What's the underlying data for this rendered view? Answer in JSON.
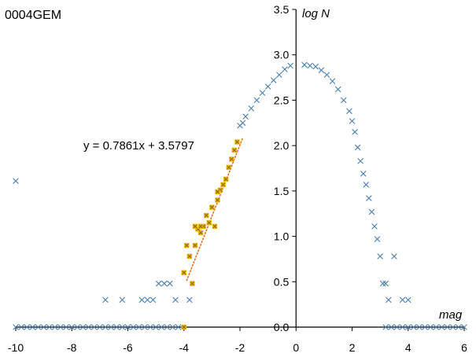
{
  "chart_data": {
    "type": "scatter",
    "title": "0004GEM",
    "xlabel": "mag",
    "ylabel": "log N",
    "xlim": [
      -10,
      6
    ],
    "ylim": [
      0,
      3.5
    ],
    "x_ticks": [
      "-10",
      "-8",
      "-6",
      "-4",
      "-2",
      "0",
      "2",
      "4",
      "6"
    ],
    "y_ticks": [
      "0.0",
      "0.5",
      "1.0",
      "1.5",
      "2.0",
      "2.5",
      "3.0",
      "3.5"
    ],
    "grid": false,
    "legend": "none",
    "trendline": {
      "equation": "y = 0.7861x + 3.5797",
      "slope": 0.7861,
      "intercept": 3.5797,
      "x_range": [
        -3.9,
        -1.9
      ],
      "color": "#e07020"
    },
    "colors": {
      "main": "#4a7fb0",
      "fit": "#f5b800",
      "axis": "#000000"
    },
    "series": [
      {
        "marker": "x",
        "x": [
          -10.0,
          0.3,
          0.5,
          0.7,
          0.9,
          1.1,
          1.3,
          1.5,
          1.7,
          1.9,
          2.0,
          2.1,
          2.2,
          2.3,
          2.4,
          2.5,
          2.6,
          2.7,
          2.8,
          2.9,
          3.0,
          3.1,
          3.2,
          3.3,
          3.5,
          3.8,
          4.0,
          -0.2,
          -0.4,
          -0.6,
          -0.8,
          -1.0,
          -1.2,
          -1.4,
          -1.6,
          -1.8,
          -1.9,
          -2.0,
          -6.8,
          -6.2,
          -5.5,
          -5.3,
          -5.1,
          -4.9,
          -4.7,
          -4.5,
          -4.3,
          -3.8
        ],
        "y": [
          1.61,
          2.89,
          2.88,
          2.87,
          2.83,
          2.78,
          2.71,
          2.62,
          2.5,
          2.38,
          2.27,
          2.15,
          1.98,
          1.83,
          1.69,
          1.57,
          1.42,
          1.27,
          1.11,
          0.97,
          0.78,
          0.48,
          0.48,
          0.3,
          0.78,
          0.3,
          0.3,
          2.88,
          2.84,
          2.78,
          2.72,
          2.65,
          2.58,
          2.5,
          2.41,
          2.32,
          2.25,
          2.22,
          0.3,
          0.3,
          0.3,
          0.3,
          0.3,
          0.48,
          0.48,
          0.48,
          0.3,
          0.3
        ]
      },
      {
        "marker": "x",
        "x": [
          -10.0,
          -9.8,
          -9.6,
          -9.4,
          -9.2,
          -9.0,
          -8.8,
          -8.6,
          -8.4,
          -8.2,
          -8.0,
          -7.8,
          -7.6,
          -7.4,
          -7.2,
          -7.0,
          -6.8,
          -6.6,
          -6.4,
          -6.2,
          -6.0,
          -5.8,
          -5.6,
          -5.4,
          -5.2,
          -5.0,
          -4.8,
          -4.6,
          -4.4,
          -4.2,
          4.2,
          4.4,
          4.6,
          4.8,
          5.0,
          5.2,
          5.4,
          5.6,
          5.8,
          6.0,
          3.2,
          3.4,
          3.6,
          3.8,
          4.0
        ],
        "y": [
          0,
          0,
          0,
          0,
          0,
          0,
          0,
          0,
          0,
          0,
          0,
          0,
          0,
          0,
          0,
          0,
          0,
          0,
          0,
          0,
          0,
          0,
          0,
          0,
          0,
          0,
          0,
          0,
          0,
          0,
          0,
          0,
          0,
          0,
          0,
          0,
          0,
          0,
          0,
          0,
          0,
          0,
          0,
          0,
          0
        ]
      },
      {
        "marker": "square",
        "x": [
          -4.0,
          -3.8,
          -3.7,
          -3.6,
          -3.5,
          -3.4,
          -3.3,
          -3.2,
          -3.1,
          -3.0,
          -2.9,
          -2.8,
          -2.7,
          -2.6,
          -2.5,
          -2.4,
          -2.3,
          -2.2,
          -2.1,
          -3.9,
          -3.5,
          -2.8,
          -3.6,
          -4.0,
          -3.4
        ],
        "y": [
          0.6,
          0.78,
          0.48,
          0.9,
          1.08,
          1.04,
          1.11,
          1.23,
          1.15,
          1.32,
          1.11,
          1.4,
          1.51,
          1.57,
          1.63,
          1.76,
          1.85,
          1.95,
          2.04,
          0.9,
          1.08,
          1.49,
          1.11,
          0.0,
          1.11
        ]
      }
    ]
  }
}
